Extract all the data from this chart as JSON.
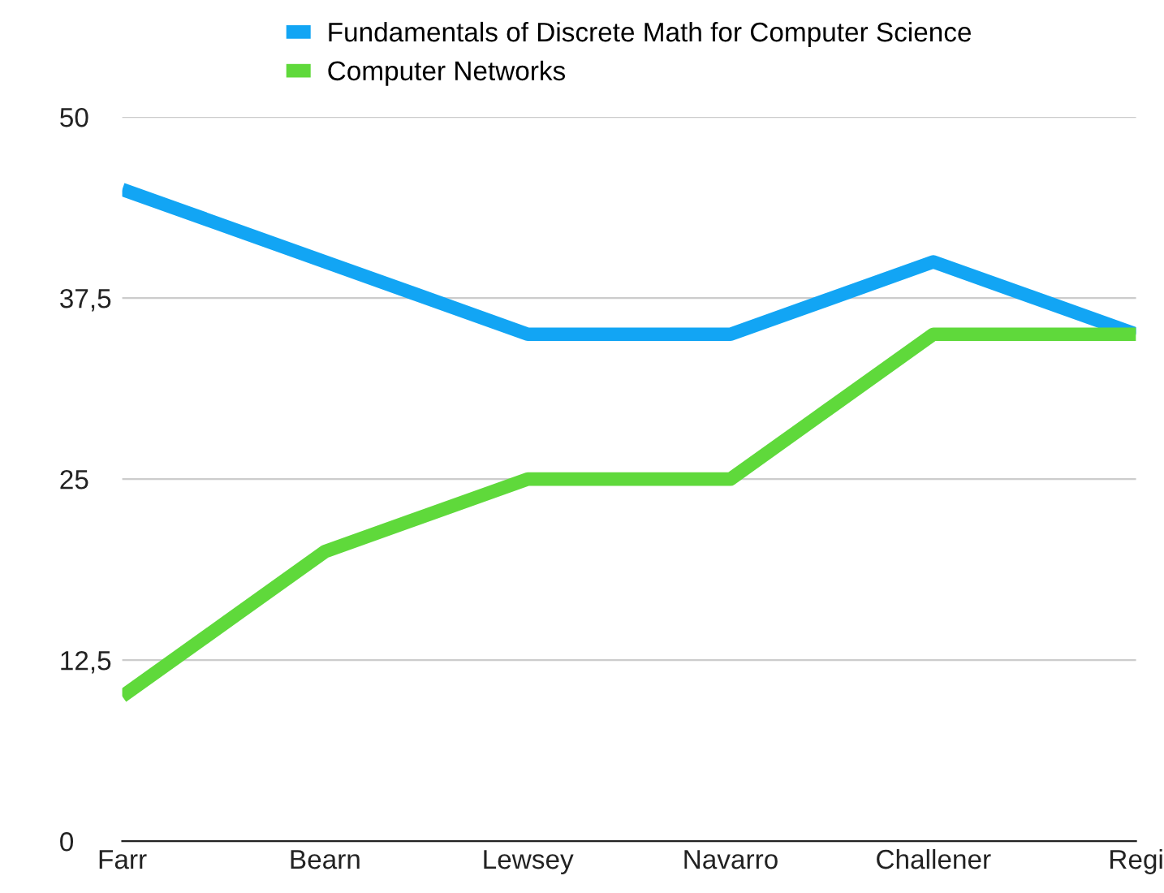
{
  "chart_data": {
    "type": "line",
    "categories": [
      "Farr",
      "Bearn",
      "Lewsey",
      "Navarro",
      "Challener",
      "Regi"
    ],
    "series": [
      {
        "name": "Fundamentals of Discrete Math for Computer Science",
        "color": "#12a5f4",
        "values": [
          45,
          40,
          35,
          35,
          40,
          35
        ]
      },
      {
        "name": "Computer Networks",
        "color": "#5fd93b",
        "values": [
          10,
          20,
          25,
          25,
          35,
          35
        ]
      }
    ],
    "ylim": [
      0,
      50
    ],
    "yticks": [
      0,
      {
        "value": 12.5,
        "label": "12,5"
      },
      25,
      {
        "value": 37.5,
        "label": "37,5"
      },
      50
    ],
    "grid": "y",
    "legend": "top",
    "marker": "none",
    "line_style": "solid"
  }
}
